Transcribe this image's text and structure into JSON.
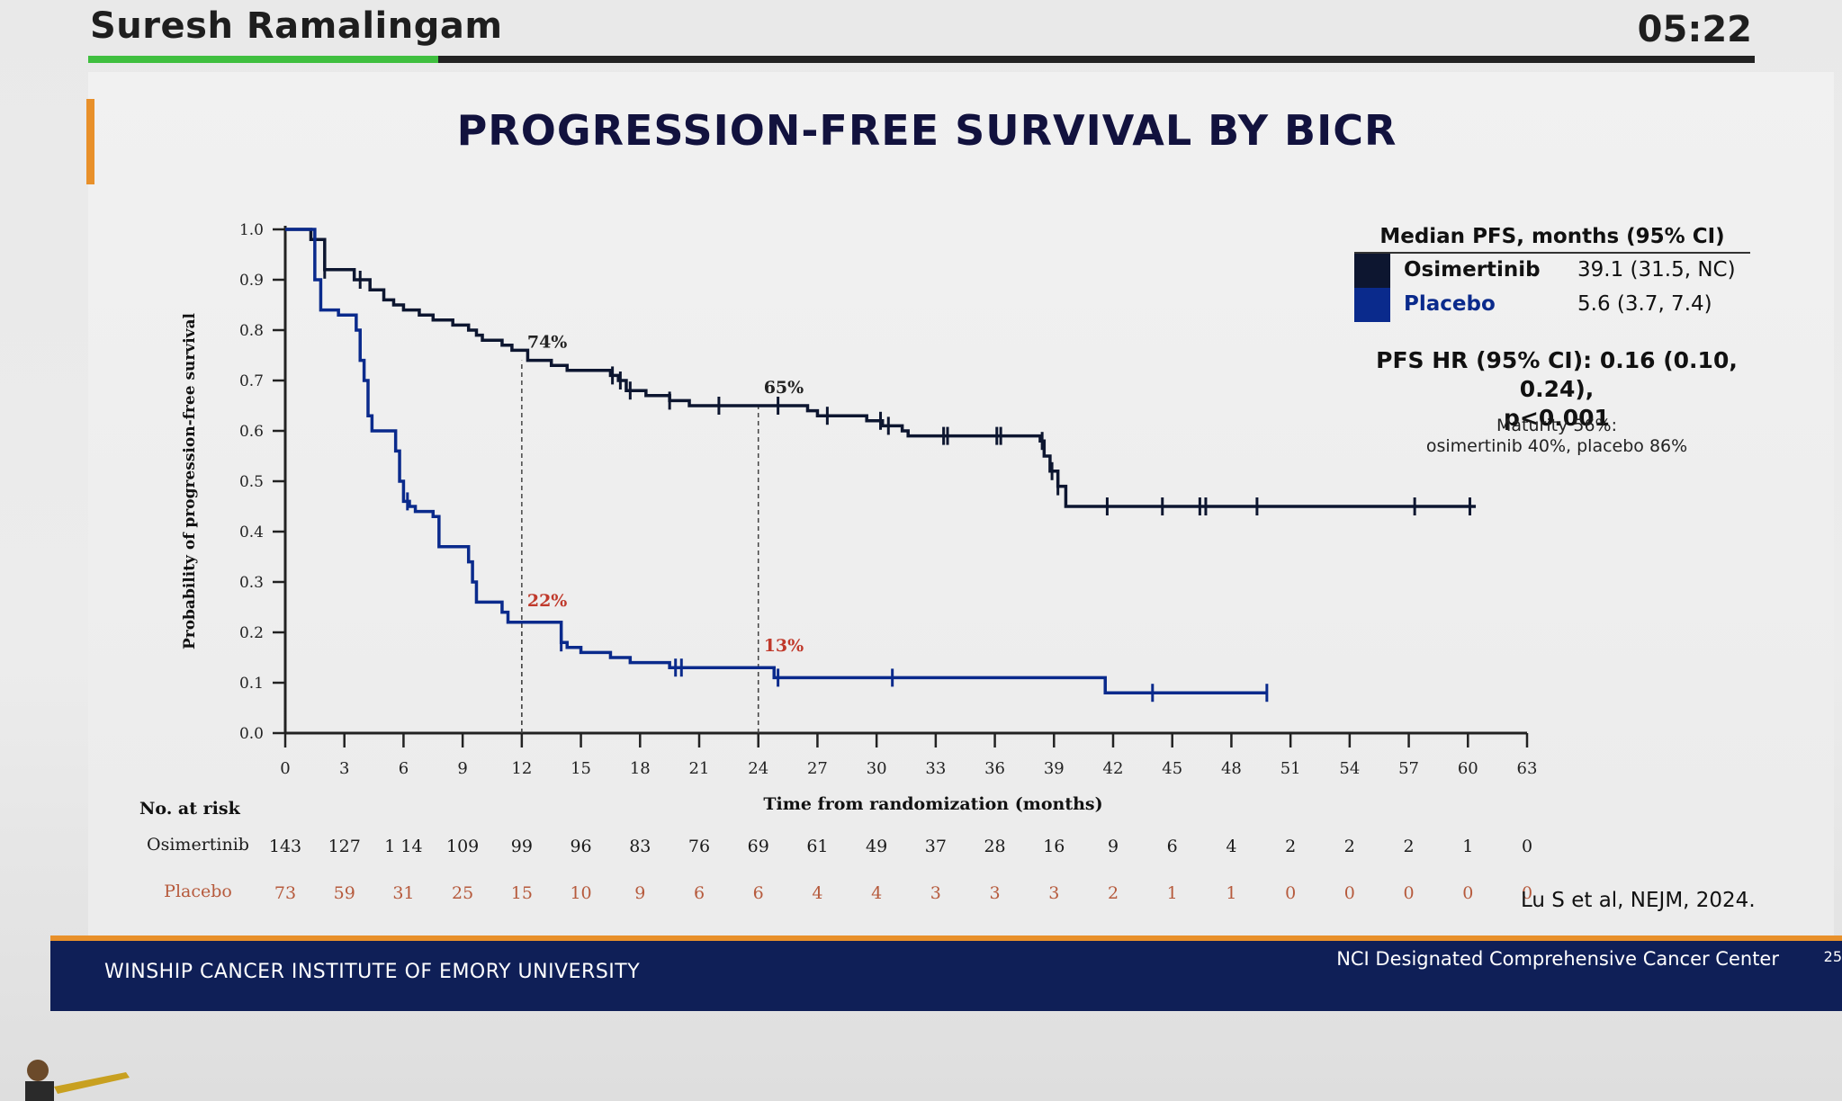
{
  "speaker": {
    "name": "Suresh Ramalingam",
    "timer": "05:22",
    "progress_fraction": 0.21
  },
  "slide": {
    "title": "PROGRESSION-FREE SURVIVAL BY BICR",
    "legend": {
      "header": "Median PFS, months (95% CI)",
      "rows": [
        {
          "name": "Osimertinib",
          "value": "39.1 (31.5, NC)",
          "color": "#0d1630"
        },
        {
          "name": "Placebo",
          "value": "5.6 (3.7, 7.4)",
          "color": "#0a2a8c"
        }
      ]
    },
    "hr_line1": "PFS HR (95% CI): 0.16 (0.10, 0.24),",
    "hr_line2": "p<0.001",
    "maturity_line1": "Maturity 56%:",
    "maturity_line2": "osimertinib 40%, placebo 86%",
    "citation": "Lu S et al, NEJM, 2024.",
    "footer_left": "WINSHIP CANCER INSTITUTE OF EMORY UNIVERSITY",
    "footer_right": "NCI Designated Comprehensive Cancer Center",
    "page_number": "25"
  },
  "chart_data": {
    "type": "line",
    "xlabel": "Time from randomization (months)",
    "ylabel": "Probability of progression-free survival",
    "xlim": [
      0,
      63
    ],
    "ylim": [
      0,
      1.0
    ],
    "x_ticks": [
      0,
      3,
      6,
      9,
      12,
      15,
      18,
      21,
      24,
      27,
      30,
      33,
      36,
      39,
      42,
      45,
      48,
      51,
      54,
      57,
      60,
      63
    ],
    "x_tick_labels": [
      "0",
      "3",
      "6",
      "9",
      "12",
      "15",
      "18",
      "21",
      "24",
      "27",
      "30",
      "33",
      "36",
      "39",
      "42",
      "45",
      "48",
      "51",
      "54",
      "57",
      "60",
      "63"
    ],
    "y_ticks": [
      0.0,
      0.1,
      0.2,
      0.3,
      0.4,
      0.5,
      0.6,
      0.7,
      0.8,
      0.9,
      1.0
    ],
    "y_tick_labels": [
      "0.0",
      "0.1",
      "0.2",
      "0.3",
      "0.4",
      "0.5",
      "0.6",
      "0.7",
      "0.8",
      "0.9",
      "1.0"
    ],
    "series": [
      {
        "name": "Osimertinib",
        "color": "#0d1630",
        "steps": [
          [
            0,
            1.0
          ],
          [
            1.3,
            0.98
          ],
          [
            2,
            0.92
          ],
          [
            3.5,
            0.9
          ],
          [
            4.3,
            0.88
          ],
          [
            5,
            0.86
          ],
          [
            5.5,
            0.85
          ],
          [
            6,
            0.84
          ],
          [
            6.8,
            0.83
          ],
          [
            7.5,
            0.82
          ],
          [
            8.5,
            0.81
          ],
          [
            9.3,
            0.8
          ],
          [
            9.7,
            0.79
          ],
          [
            10,
            0.78
          ],
          [
            11,
            0.77
          ],
          [
            11.5,
            0.76
          ],
          [
            12.3,
            0.74
          ],
          [
            13.5,
            0.73
          ],
          [
            14.3,
            0.72
          ],
          [
            16.5,
            0.71
          ],
          [
            16.9,
            0.7
          ],
          [
            17.3,
            0.68
          ],
          [
            18.3,
            0.67
          ],
          [
            19.5,
            0.66
          ],
          [
            20.5,
            0.65
          ],
          [
            26.5,
            0.64
          ],
          [
            27,
            0.63
          ],
          [
            29.5,
            0.62
          ],
          [
            30.3,
            0.61
          ],
          [
            31.3,
            0.6
          ],
          [
            31.6,
            0.59
          ],
          [
            38.3,
            0.58
          ],
          [
            38.5,
            0.55
          ],
          [
            38.8,
            0.52
          ],
          [
            39.2,
            0.49
          ],
          [
            39.6,
            0.45
          ],
          [
            60.4,
            0.45
          ]
        ],
        "censor_x": [
          2,
          3.8,
          16.6,
          17,
          17.5,
          19.5,
          22,
          25,
          27.5,
          30.2,
          30.6,
          33.4,
          33.6,
          36.1,
          36.3,
          38.4,
          38.9,
          39.2,
          41.7,
          44.5,
          46.4,
          46.7,
          49.3,
          57.3,
          60.1
        ],
        "landmarks": [
          {
            "x": 12,
            "y": 0.74,
            "label": "74%"
          },
          {
            "x": 24,
            "y": 0.65,
            "label": "65%"
          }
        ]
      },
      {
        "name": "Placebo",
        "color": "#0a2a8c",
        "steps": [
          [
            0,
            1.0
          ],
          [
            1.5,
            0.9
          ],
          [
            1.8,
            0.84
          ],
          [
            2.7,
            0.83
          ],
          [
            3.6,
            0.8
          ],
          [
            3.8,
            0.74
          ],
          [
            4,
            0.7
          ],
          [
            4.2,
            0.63
          ],
          [
            4.4,
            0.6
          ],
          [
            5.6,
            0.56
          ],
          [
            5.8,
            0.5
          ],
          [
            6,
            0.46
          ],
          [
            6.3,
            0.45
          ],
          [
            6.6,
            0.44
          ],
          [
            7.5,
            0.43
          ],
          [
            7.8,
            0.37
          ],
          [
            9.3,
            0.34
          ],
          [
            9.5,
            0.3
          ],
          [
            9.7,
            0.26
          ],
          [
            11,
            0.24
          ],
          [
            11.3,
            0.22
          ],
          [
            14,
            0.18
          ],
          [
            14.3,
            0.17
          ],
          [
            15,
            0.16
          ],
          [
            16.5,
            0.15
          ],
          [
            17.5,
            0.14
          ],
          [
            19.5,
            0.13
          ],
          [
            24.8,
            0.11
          ],
          [
            41.6,
            0.08
          ],
          [
            49.8,
            0.08
          ]
        ],
        "censor_x": [
          6.2,
          14,
          19.8,
          20.1,
          25,
          30.8,
          44,
          49.8
        ],
        "landmarks": [
          {
            "x": 12,
            "y": 0.22,
            "label": "22%"
          },
          {
            "x": 24,
            "y": 0.13,
            "label": "13%"
          }
        ]
      }
    ],
    "at_risk": {
      "header": "No. at risk",
      "rows": [
        {
          "name": "Osimertinib",
          "color": "#1a1a1a",
          "values": [
            "143",
            "127",
            "1 14",
            "109",
            "99",
            "96",
            "83",
            "76",
            "69",
            "61",
            "49",
            "37",
            "28",
            "16",
            "9",
            "6",
            "4",
            "2",
            "2",
            "2",
            "1",
            "0"
          ]
        },
        {
          "name": "Placebo",
          "color": "#b65a3c",
          "values": [
            "73",
            "59",
            "31",
            "25",
            "15",
            "10",
            "9",
            "6",
            "6",
            "4",
            "4",
            "3",
            "3",
            "3",
            "2",
            "1",
            "1",
            "0",
            "0",
            "0",
            "0",
            "0"
          ]
        }
      ]
    },
    "grid": false
  }
}
